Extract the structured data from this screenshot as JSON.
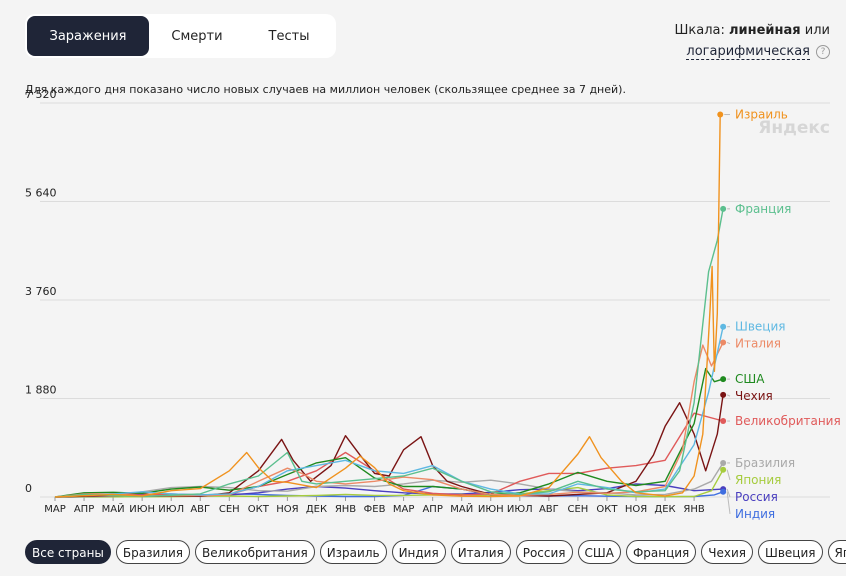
{
  "tabs": [
    {
      "label": "Заражения",
      "active": true
    },
    {
      "label": "Смерти",
      "active": false
    },
    {
      "label": "Тесты",
      "active": false
    }
  ],
  "scale": {
    "prefix": "Шкала:",
    "linear": "линейная",
    "or": "или",
    "log": "логарифмическая",
    "help": "?"
  },
  "subtitle": "Для каждого дня показано число новых случаев на миллион человек (скользящее среднее за 7 дней).",
  "watermark": "Яндекс",
  "filters": [
    {
      "label": "Все страны",
      "active": true
    },
    {
      "label": "Бразилия",
      "active": false
    },
    {
      "label": "Великобритания",
      "active": false
    },
    {
      "label": "Израиль",
      "active": false
    },
    {
      "label": "Индия",
      "active": false
    },
    {
      "label": "Италия",
      "active": false
    },
    {
      "label": "Россия",
      "active": false
    },
    {
      "label": "США",
      "active": false
    },
    {
      "label": "Франция",
      "active": false
    },
    {
      "label": "Чехия",
      "active": false
    },
    {
      "label": "Швеция",
      "active": false
    },
    {
      "label": "Япония",
      "active": false
    }
  ],
  "chart_data": {
    "type": "line",
    "title": "",
    "xlabel": "",
    "ylabel": "",
    "ylim": [
      0,
      7520
    ],
    "y_ticks": [
      "0",
      "1 880",
      "3 760",
      "5 640",
      "7 520"
    ],
    "y_tick_values": [
      0,
      1880,
      3760,
      5640,
      7520
    ],
    "x_ticks": [
      "МАР",
      "АПР",
      "МАЙ",
      "ИЮН",
      "ИЮЛ",
      "АВГ",
      "СЕН",
      "ОКТ",
      "НОЯ",
      "ДЕК",
      "ЯНВ",
      "ФЕВ",
      "МАР",
      "АПР",
      "МАЙ",
      "ИЮН",
      "ИЮЛ",
      "АВГ",
      "СЕН",
      "ОКТ",
      "НОЯ",
      "ДЕК",
      "ЯНВ"
    ],
    "x_range": [
      0,
      23
    ],
    "grid": true,
    "colors": {
      "Израиль": "#f0921e",
      "Франция": "#5bbf8e",
      "Швеция": "#5eb8e2",
      "Италия": "#ec8a66",
      "США": "#1f8a1f",
      "Чехия": "#7a1414",
      "Великобритания": "#e05a5a",
      "Бразилия": "#a9a9a9",
      "Япония": "#a6cc3e",
      "Россия": "#4a3fbf",
      "Индия": "#3f6ee0"
    },
    "series": [
      {
        "name": "Израиль",
        "end": 7300,
        "points": [
          [
            0,
            0
          ],
          [
            2,
            50
          ],
          [
            3,
            20
          ],
          [
            4,
            120
          ],
          [
            5,
            160
          ],
          [
            6,
            500
          ],
          [
            6.6,
            850
          ],
          [
            7,
            560
          ],
          [
            7.5,
            300
          ],
          [
            8,
            280
          ],
          [
            9,
            180
          ],
          [
            10,
            550
          ],
          [
            10.5,
            780
          ],
          [
            11,
            560
          ],
          [
            11.5,
            250
          ],
          [
            12,
            120
          ],
          [
            13,
            40
          ],
          [
            14,
            15
          ],
          [
            15,
            10
          ],
          [
            16,
            20
          ],
          [
            17,
            180
          ],
          [
            18,
            820
          ],
          [
            18.4,
            1150
          ],
          [
            18.8,
            750
          ],
          [
            19.5,
            300
          ],
          [
            20,
            80
          ],
          [
            21,
            20
          ],
          [
            21.6,
            80
          ],
          [
            22,
            400
          ],
          [
            22.3,
            1200
          ],
          [
            22.45,
            2600
          ],
          [
            22.55,
            3600
          ],
          [
            22.62,
            4400
          ],
          [
            22.7,
            2400
          ],
          [
            22.8,
            3500
          ],
          [
            22.9,
            7300
          ]
        ]
      },
      {
        "name": "Франция",
        "end": 5500,
        "points": [
          [
            0,
            0
          ],
          [
            1,
            50
          ],
          [
            2,
            30
          ],
          [
            3,
            10
          ],
          [
            5,
            60
          ],
          [
            6,
            250
          ],
          [
            7,
            400
          ],
          [
            8,
            850
          ],
          [
            8.5,
            300
          ],
          [
            9,
            250
          ],
          [
            10,
            300
          ],
          [
            11,
            350
          ],
          [
            12,
            400
          ],
          [
            13,
            550
          ],
          [
            14,
            300
          ],
          [
            15,
            100
          ],
          [
            16,
            50
          ],
          [
            17,
            100
          ],
          [
            18,
            300
          ],
          [
            19,
            150
          ],
          [
            20,
            100
          ],
          [
            21,
            120
          ],
          [
            21.5,
            500
          ],
          [
            22,
            1800
          ],
          [
            22.3,
            3300
          ],
          [
            22.5,
            4300
          ],
          [
            22.8,
            4900
          ],
          [
            23,
            5500
          ]
        ]
      },
      {
        "name": "Швеция",
        "end": 3250,
        "points": [
          [
            0,
            0
          ],
          [
            2,
            60
          ],
          [
            3,
            100
          ],
          [
            4,
            60
          ],
          [
            5,
            40
          ],
          [
            6,
            60
          ],
          [
            7,
            200
          ],
          [
            8,
            500
          ],
          [
            9,
            600
          ],
          [
            10,
            700
          ],
          [
            11,
            500
          ],
          [
            12,
            450
          ],
          [
            13,
            600
          ],
          [
            14,
            300
          ],
          [
            15,
            150
          ],
          [
            16,
            60
          ],
          [
            17,
            60
          ],
          [
            18,
            250
          ],
          [
            19,
            180
          ],
          [
            20,
            80
          ],
          [
            21,
            150
          ],
          [
            22,
            1000
          ],
          [
            22.5,
            2000
          ],
          [
            23,
            3250
          ]
        ]
      },
      {
        "name": "Италия",
        "end": 2950,
        "points": [
          [
            0,
            0
          ],
          [
            1,
            60
          ],
          [
            2,
            60
          ],
          [
            3,
            20
          ],
          [
            5,
            30
          ],
          [
            6,
            40
          ],
          [
            7,
            300
          ],
          [
            8,
            550
          ],
          [
            8.5,
            450
          ],
          [
            9,
            300
          ],
          [
            10,
            250
          ],
          [
            11,
            300
          ],
          [
            12,
            380
          ],
          [
            13,
            330
          ],
          [
            14,
            150
          ],
          [
            15,
            50
          ],
          [
            16,
            30
          ],
          [
            17,
            50
          ],
          [
            18,
            90
          ],
          [
            19,
            70
          ],
          [
            20,
            100
          ],
          [
            21,
            200
          ],
          [
            21.6,
            900
          ],
          [
            22,
            2200
          ],
          [
            22.3,
            2900
          ],
          [
            22.6,
            2500
          ],
          [
            23,
            2950
          ]
        ]
      },
      {
        "name": "США",
        "end": 2250,
        "points": [
          [
            0,
            0
          ],
          [
            1,
            80
          ],
          [
            2,
            90
          ],
          [
            3,
            70
          ],
          [
            4,
            150
          ],
          [
            5,
            190
          ],
          [
            6,
            130
          ],
          [
            7,
            200
          ],
          [
            8,
            430
          ],
          [
            9,
            650
          ],
          [
            10,
            750
          ],
          [
            11,
            360
          ],
          [
            12,
            200
          ],
          [
            13,
            200
          ],
          [
            14,
            150
          ],
          [
            15,
            50
          ],
          [
            16,
            80
          ],
          [
            17,
            250
          ],
          [
            18,
            470
          ],
          [
            19,
            300
          ],
          [
            20,
            220
          ],
          [
            21,
            300
          ],
          [
            22,
            1400
          ],
          [
            22.4,
            2450
          ],
          [
            22.7,
            2200
          ],
          [
            23,
            2250
          ]
        ]
      },
      {
        "name": "Чехия",
        "end": 1950,
        "points": [
          [
            0,
            0
          ],
          [
            2,
            30
          ],
          [
            3,
            20
          ],
          [
            5,
            15
          ],
          [
            6,
            80
          ],
          [
            7,
            500
          ],
          [
            7.8,
            1100
          ],
          [
            8.2,
            700
          ],
          [
            8.8,
            300
          ],
          [
            9.5,
            600
          ],
          [
            10,
            1170
          ],
          [
            10.5,
            800
          ],
          [
            11,
            450
          ],
          [
            11.5,
            400
          ],
          [
            12,
            900
          ],
          [
            12.6,
            1150
          ],
          [
            13,
            600
          ],
          [
            13.5,
            300
          ],
          [
            14,
            200
          ],
          [
            15,
            50
          ],
          [
            16,
            30
          ],
          [
            17,
            20
          ],
          [
            18,
            50
          ],
          [
            19,
            80
          ],
          [
            20,
            300
          ],
          [
            20.6,
            800
          ],
          [
            21,
            1350
          ],
          [
            21.5,
            1800
          ],
          [
            22,
            1200
          ],
          [
            22.4,
            500
          ],
          [
            22.8,
            1200
          ],
          [
            23,
            1950
          ]
        ]
      },
      {
        "name": "Великобритания",
        "end": 1450,
        "points": [
          [
            0,
            0
          ],
          [
            2,
            60
          ],
          [
            3,
            60
          ],
          [
            4,
            40
          ],
          [
            5,
            15
          ],
          [
            6,
            50
          ],
          [
            7,
            200
          ],
          [
            8,
            300
          ],
          [
            9,
            500
          ],
          [
            10,
            850
          ],
          [
            11,
            500
          ],
          [
            12,
            150
          ],
          [
            13,
            70
          ],
          [
            14,
            40
          ],
          [
            15,
            60
          ],
          [
            16,
            300
          ],
          [
            17,
            450
          ],
          [
            18,
            450
          ],
          [
            19,
            550
          ],
          [
            20,
            600
          ],
          [
            21,
            700
          ],
          [
            22,
            1600
          ],
          [
            23,
            1450
          ]
        ]
      },
      {
        "name": "Бразилия",
        "end": 650,
        "points": [
          [
            0,
            0
          ],
          [
            2,
            20
          ],
          [
            3,
            100
          ],
          [
            4,
            180
          ],
          [
            5,
            200
          ],
          [
            6,
            180
          ],
          [
            7,
            120
          ],
          [
            8,
            110
          ],
          [
            9,
            200
          ],
          [
            10,
            220
          ],
          [
            11,
            200
          ],
          [
            12,
            250
          ],
          [
            13,
            320
          ],
          [
            14,
            280
          ],
          [
            15,
            320
          ],
          [
            16,
            250
          ],
          [
            17,
            150
          ],
          [
            18,
            100
          ],
          [
            19,
            80
          ],
          [
            20,
            40
          ],
          [
            21,
            50
          ],
          [
            22,
            150
          ],
          [
            22.6,
            300
          ],
          [
            23,
            650
          ]
        ]
      },
      {
        "name": "Япония",
        "end": 520,
        "points": [
          [
            0,
            0
          ],
          [
            4,
            5
          ],
          [
            5,
            15
          ],
          [
            6,
            20
          ],
          [
            7,
            10
          ],
          [
            8,
            20
          ],
          [
            9,
            30
          ],
          [
            10,
            50
          ],
          [
            11,
            30
          ],
          [
            12,
            30
          ],
          [
            13,
            40
          ],
          [
            14,
            50
          ],
          [
            15,
            20
          ],
          [
            16,
            60
          ],
          [
            17,
            120
          ],
          [
            18,
            180
          ],
          [
            19,
            40
          ],
          [
            20,
            10
          ],
          [
            21,
            5
          ],
          [
            22,
            10
          ],
          [
            22.6,
            120
          ],
          [
            23,
            520
          ]
        ]
      },
      {
        "name": "Россия",
        "end": 150,
        "points": [
          [
            0,
            0
          ],
          [
            2,
            20
          ],
          [
            3,
            50
          ],
          [
            4,
            60
          ],
          [
            5,
            40
          ],
          [
            6,
            40
          ],
          [
            7,
            80
          ],
          [
            8,
            150
          ],
          [
            9,
            200
          ],
          [
            10,
            170
          ],
          [
            11,
            120
          ],
          [
            12,
            80
          ],
          [
            13,
            60
          ],
          [
            14,
            60
          ],
          [
            15,
            90
          ],
          [
            16,
            140
          ],
          [
            17,
            150
          ],
          [
            18,
            120
          ],
          [
            19,
            160
          ],
          [
            20,
            250
          ],
          [
            21,
            220
          ],
          [
            22,
            120
          ],
          [
            23,
            150
          ]
        ]
      },
      {
        "name": "Индия",
        "end": 100,
        "points": [
          [
            0,
            0
          ],
          [
            3,
            5
          ],
          [
            4,
            20
          ],
          [
            5,
            40
          ],
          [
            6,
            60
          ],
          [
            7,
            50
          ],
          [
            8,
            30
          ],
          [
            9,
            20
          ],
          [
            10,
            10
          ],
          [
            11,
            10
          ],
          [
            12,
            30
          ],
          [
            13,
            200
          ],
          [
            14,
            150
          ],
          [
            15,
            40
          ],
          [
            16,
            30
          ],
          [
            17,
            20
          ],
          [
            18,
            25
          ],
          [
            19,
            15
          ],
          [
            20,
            10
          ],
          [
            21,
            5
          ],
          [
            22,
            10
          ],
          [
            22.7,
            40
          ],
          [
            23,
            100
          ]
        ]
      }
    ]
  }
}
